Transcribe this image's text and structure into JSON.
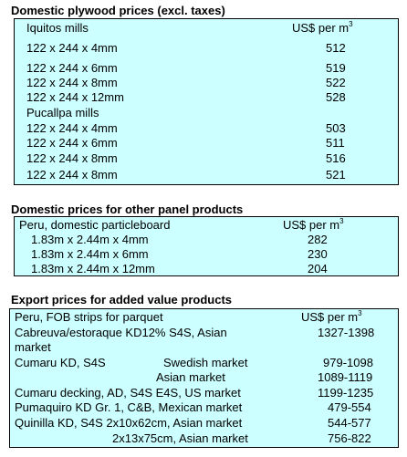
{
  "plywood": {
    "title": "Domestic plywood prices (excl. taxes)",
    "mill1": "Iquitos mills",
    "header_unit": "US$ per m",
    "header_sup": "3",
    "iquitos_rows": [
      {
        "size": "122 x 244 x 4mm",
        "price": "512"
      },
      {
        "size": "122 x 244 x 6mm",
        "price": "519"
      },
      {
        "size": "122 x 244 x 8mm",
        "price": "522"
      },
      {
        "size": "122 x 244 x 12mm",
        "price": "528"
      }
    ],
    "mill2": "Pucallpa mills",
    "pucallpa_rows": [
      {
        "size": "122 x 244 x 4mm",
        "price": "503"
      },
      {
        "size": "122 x 244 x 6mm",
        "price": "511"
      },
      {
        "size": "122 x 244 x 8mm",
        "price": "516"
      },
      {
        "size": "122 x 244 x 8mm",
        "price": "521"
      }
    ]
  },
  "panel": {
    "title": "Domestic prices for other panel products",
    "label": "Peru, domestic particleboard",
    "header_unit": "US$ per m",
    "header_sup": "3",
    "rows": [
      {
        "size": "1.83m x 2.44m x 4mm",
        "price": "282"
      },
      {
        "size": "1.83m x 2.44m x 6mm",
        "price": "230"
      },
      {
        "size": "1.83m x 2.44m x 12mm",
        "price": "204"
      }
    ]
  },
  "export": {
    "title": "Export prices for added value products",
    "header_label": "Peru, FOB strips for parquet",
    "header_unit": "US$ per m",
    "header_sup": "3",
    "r1_label": "Cabreuva/estoraque KD12% S4S, Asian",
    "r1_label2": "market",
    "r1_price": "1327-1398",
    "r2_label": "Cumaru KD, S4S",
    "r2_market": "Swedish market",
    "r2_price": "979-1098",
    "r3_market": "Asian market",
    "r3_price": "1089-1119",
    "r4_label": "Cumaru decking, AD, S4S E4S, US market",
    "r4_price": "1199-1235",
    "r5_label": "Pumaquiro KD Gr. 1, C&B, Mexican market",
    "r5_price": "479-554",
    "r6_label": "Quinilla KD, S4S 2x10x62cm, Asian market",
    "r6_price": "544-577",
    "r7_label": "2x13x75cm, Asian market",
    "r7_price": "756-822"
  }
}
